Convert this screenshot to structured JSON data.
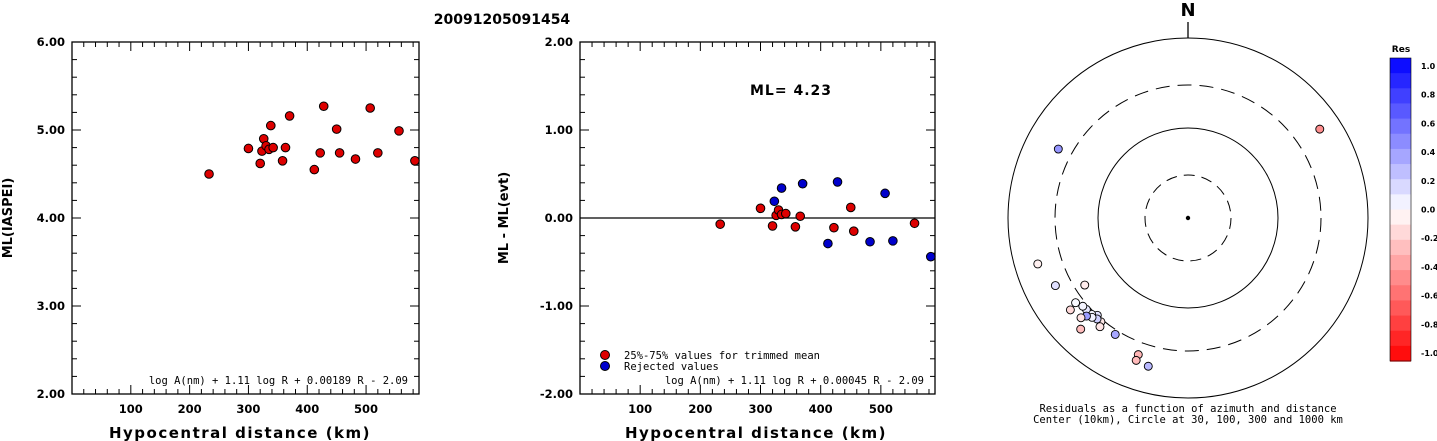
{
  "title": "20091205091454",
  "chart_data": [
    {
      "type": "scatter",
      "ylabel": "ML(IASPEI)",
      "xlabel": "Hypocentral distance (km)",
      "xlim": [
        0,
        590
      ],
      "ylim": [
        2.0,
        6.0
      ],
      "x_ticks": [
        100,
        200,
        300,
        400,
        500
      ],
      "x_tick_labels": [
        "100",
        "200",
        "300",
        "400",
        "500"
      ],
      "y_ticks": [
        2.0,
        3.0,
        4.0,
        5.0,
        6.0
      ],
      "y_tick_labels": [
        "2.00",
        "3.00",
        "4.00",
        "5.00",
        "6.00"
      ],
      "formula": "log A(nm) + 1.11 log R + 0.00189 R - 2.09",
      "series": [
        {
          "color": "#dd0000",
          "points": [
            [
              233,
              4.5
            ],
            [
              300,
              4.79
            ],
            [
              320,
              4.62
            ],
            [
              323,
              4.76
            ],
            [
              326,
              4.9
            ],
            [
              330,
              4.82
            ],
            [
              335,
              4.78
            ],
            [
              338,
              5.05
            ],
            [
              342,
              4.8
            ],
            [
              358,
              4.65
            ],
            [
              363,
              4.8
            ],
            [
              370,
              5.16
            ],
            [
              412,
              4.55
            ],
            [
              422,
              4.74
            ],
            [
              428,
              5.27
            ],
            [
              450,
              5.01
            ],
            [
              455,
              4.74
            ],
            [
              482,
              4.67
            ],
            [
              507,
              5.25
            ],
            [
              520,
              4.74
            ],
            [
              556,
              4.99
            ],
            [
              583,
              4.65
            ]
          ]
        }
      ]
    },
    {
      "type": "scatter",
      "ylabel": "ML - ML(evt)",
      "xlabel": "Hypocentral distance (km)",
      "xlim": [
        0,
        590
      ],
      "ylim": [
        -2.0,
        2.0
      ],
      "x_ticks": [
        100,
        200,
        300,
        400,
        500
      ],
      "x_tick_labels": [
        "100",
        "200",
        "300",
        "400",
        "500"
      ],
      "y_ticks": [
        -2.0,
        -1.0,
        0.0,
        1.0,
        2.0
      ],
      "y_tick_labels": [
        "-2.00",
        "-1.00",
        "0.00",
        "1.00",
        "2.00"
      ],
      "annotation": "ML= 4.23",
      "formula": "log A(nm) + 1.11 log R + 0.00045 R - 2.09",
      "legend": [
        "25%-75% values for trimmed mean",
        "Rejected values"
      ],
      "series": [
        {
          "name": "25%-75% values for trimmed mean",
          "color": "#dd0000",
          "points": [
            [
              233,
              -0.07
            ],
            [
              300,
              0.11
            ],
            [
              320,
              -0.09
            ],
            [
              326,
              0.03
            ],
            [
              330,
              0.09
            ],
            [
              335,
              0.04
            ],
            [
              342,
              0.05
            ],
            [
              358,
              -0.1
            ],
            [
              366,
              0.02
            ],
            [
              422,
              -0.11
            ],
            [
              450,
              0.12
            ],
            [
              455,
              -0.15
            ],
            [
              556,
              -0.06
            ]
          ]
        },
        {
          "name": "Rejected values",
          "color": "#0000cc",
          "points": [
            [
              323,
              0.19
            ],
            [
              335,
              0.34
            ],
            [
              370,
              0.39
            ],
            [
              412,
              -0.29
            ],
            [
              428,
              0.41
            ],
            [
              482,
              -0.27
            ],
            [
              507,
              0.28
            ],
            [
              520,
              -0.26
            ],
            [
              583,
              -0.44
            ]
          ]
        }
      ]
    },
    {
      "type": "polar_scatter",
      "north_label": "N",
      "caption_line1": "Residuals as a function of azimuth and distance",
      "caption_line2": "Center (10km), Circle at 30, 100, 300 and 1000 km",
      "colorbar_title": "Res",
      "colorbar_ticks": [
        "1.0",
        "0.8",
        "0.6",
        "0.4",
        "0.2",
        "0.0",
        "-0.2",
        "-0.4",
        "-0.6",
        "-0.8",
        "-1.0"
      ],
      "points": [
        {
          "az": 237,
          "dist": 233,
          "res": -0.07
        },
        {
          "az": 223,
          "dist": 300,
          "res": 0.11
        },
        {
          "az": 220,
          "dist": 320,
          "res": -0.09
        },
        {
          "az": 222,
          "dist": 323,
          "res": 0.19
        },
        {
          "az": 225,
          "dist": 326,
          "res": 0.03
        },
        {
          "az": 228,
          "dist": 330,
          "res": 0.09
        },
        {
          "az": 212,
          "dist": 335,
          "res": 0.34
        },
        {
          "az": 230,
          "dist": 335,
          "res": 0.04
        },
        {
          "az": 224,
          "dist": 342,
          "res": 0.05
        },
        {
          "az": 219,
          "dist": 358,
          "res": -0.1
        },
        {
          "az": 233,
          "dist": 366,
          "res": 0.02
        },
        {
          "az": 226,
          "dist": 370,
          "res": 0.39
        },
        {
          "az": 200,
          "dist": 412,
          "res": -0.29
        },
        {
          "az": 227,
          "dist": 422,
          "res": -0.11
        },
        {
          "az": 298,
          "dist": 428,
          "res": 0.41
        },
        {
          "az": 243,
          "dist": 450,
          "res": 0.12
        },
        {
          "az": 232,
          "dist": 455,
          "res": -0.15
        },
        {
          "az": 200,
          "dist": 482,
          "res": -0.27
        },
        {
          "az": 195,
          "dist": 507,
          "res": 0.28
        },
        {
          "az": 224,
          "dist": 520,
          "res": -0.26
        },
        {
          "az": 253,
          "dist": 556,
          "res": -0.06
        },
        {
          "az": 56,
          "dist": 583,
          "res": -0.44
        }
      ]
    }
  ]
}
